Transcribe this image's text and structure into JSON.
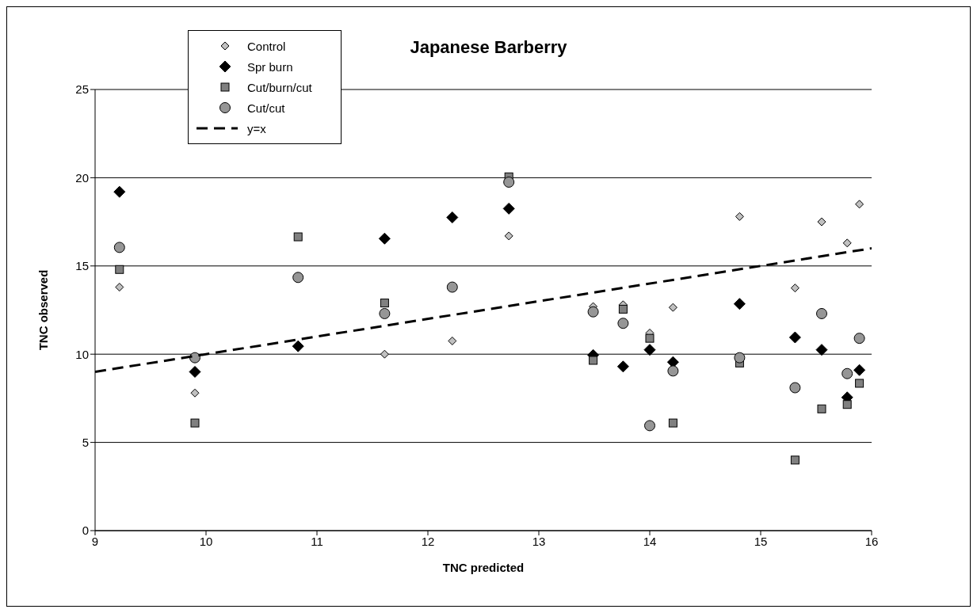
{
  "chart_data": {
    "type": "scatter",
    "title": "Japanese Barberry",
    "xlabel": "TNC predicted",
    "ylabel": "TNC observed",
    "x": [
      9.22,
      9.9,
      10.83,
      11.61,
      12.22,
      12.73,
      13.49,
      13.76,
      14.0,
      14.21,
      14.81,
      15.31,
      15.55,
      15.78,
      15.89
    ],
    "series": [
      {
        "name": "Control",
        "color": "#c0c0c0",
        "marker": "diamond",
        "values": [
          13.8,
          7.8,
          null,
          10.0,
          10.75,
          16.7,
          12.7,
          12.8,
          11.2,
          12.65,
          17.8,
          13.75,
          17.5,
          16.3,
          18.5
        ]
      },
      {
        "name": "Spr burn",
        "color": "#000000",
        "marker": "diamond",
        "values": [
          19.2,
          9.0,
          10.45,
          16.55,
          17.75,
          18.25,
          9.95,
          9.3,
          10.25,
          9.55,
          12.85,
          10.95,
          10.25,
          7.55,
          9.1
        ]
      },
      {
        "name": "Cut/burn/cut",
        "color": "#808080",
        "marker": "square",
        "values": [
          14.8,
          6.1,
          16.65,
          12.9,
          null,
          20.05,
          9.65,
          12.55,
          10.9,
          6.1,
          9.5,
          4.0,
          6.9,
          7.15,
          8.35
        ]
      },
      {
        "name": "Cut/cut",
        "color": "#969696",
        "marker": "circle",
        "values": [
          16.05,
          9.8,
          14.35,
          12.3,
          13.8,
          19.75,
          12.4,
          11.75,
          5.95,
          9.05,
          9.8,
          8.1,
          12.3,
          8.9,
          10.9
        ]
      },
      {
        "name": "y=x",
        "type": "line",
        "color": "#000000",
        "marker": "none",
        "line_style": "dashed",
        "x": [
          9,
          16
        ],
        "values": [
          9,
          16
        ]
      }
    ],
    "xlim": [
      9,
      16
    ],
    "xticks": [
      9,
      10,
      11,
      12,
      13,
      14,
      15,
      16
    ],
    "ylim": [
      0,
      25
    ],
    "yticks": [
      0,
      5,
      10,
      15,
      20,
      25
    ],
    "grid": "y",
    "legend": "top left"
  }
}
